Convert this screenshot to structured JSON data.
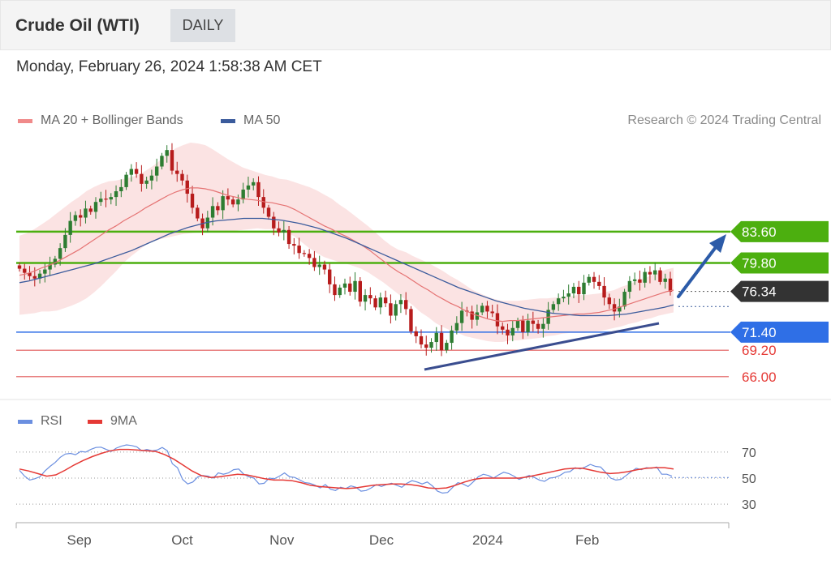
{
  "header": {
    "title": "Crude Oil (WTI)",
    "timeframe": "DAILY"
  },
  "datetime": "Monday, February 26, 2024 1:58:38 AM CET",
  "credit": "Research © 2024 Trading Central",
  "colors": {
    "bull": "#2e7d32",
    "bear": "#b71c1c",
    "ma20": "#e57373",
    "band_fill": "#fbe0e0",
    "ma50": "#3b5b9c",
    "resistance": "#4caf0f",
    "support": "#2f6fe6",
    "weak_support": "#e88080",
    "rsi": "#6b8fe0",
    "rsi_ma": "#e53935",
    "current": "#333333",
    "arrow": "#2c5ba8"
  },
  "chart_data": [
    {
      "type": "candlestick",
      "series": [
        {
          "name": "MA 20 + Bollinger Bands"
        },
        {
          "name": "MA 50"
        }
      ],
      "legend_position": "top-left",
      "x_axis": {
        "tick_labels": [
          "Sep",
          "Oct",
          "Nov",
          "Dec",
          "2024",
          "Feb"
        ],
        "tick_dates": [
          "2023-09-01",
          "2023-10-02",
          "2023-11-01",
          "2023-12-01",
          "2024-01-02",
          "2024-02-01"
        ],
        "range": [
          "2023-08-14",
          "2024-02-26"
        ]
      },
      "y_axis": {
        "range": [
          64.5,
          94.5
        ]
      },
      "levels": [
        {
          "value": 83.6,
          "label": "83.60",
          "kind": "resistance"
        },
        {
          "value": 79.8,
          "label": "79.80",
          "kind": "resistance"
        },
        {
          "value": 76.34,
          "label": "76.34",
          "kind": "current"
        },
        {
          "value": 71.4,
          "label": "71.40",
          "kind": "support"
        },
        {
          "value": 69.2,
          "label": "69.20",
          "kind": "weak_support"
        },
        {
          "value": 66.0,
          "label": "66.00",
          "kind": "weak_support"
        }
      ],
      "closes": [
        79.1,
        78.6,
        78.2,
        77.9,
        78.5,
        79.0,
        79.6,
        80.3,
        81.6,
        83.2,
        84.9,
        85.6,
        85.3,
        86.4,
        86.0,
        87.2,
        87.6,
        87.5,
        87.8,
        88.5,
        89.0,
        90.5,
        91.2,
        90.6,
        89.4,
        89.8,
        90.4,
        91.5,
        92.8,
        93.5,
        91.0,
        90.6,
        89.8,
        88.2,
        86.5,
        85.2,
        84.0,
        85.3,
        86.7,
        86.2,
        87.9,
        87.5,
        86.9,
        87.5,
        88.7,
        89.2,
        89.6,
        87.8,
        86.5,
        85.4,
        84.0,
        83.5,
        83.8,
        82.1,
        81.9,
        81.0,
        80.9,
        80.4,
        79.3,
        79.6,
        79.0,
        77.2,
        75.9,
        76.8,
        77.3,
        76.3,
        77.6,
        75.1,
        75.9,
        75.5,
        74.4,
        75.6,
        74.9,
        73.4,
        74.8,
        75.3,
        74.2,
        71.5,
        70.9,
        69.9,
        69.5,
        70.2,
        71.3,
        69.2,
        70.1,
        71.6,
        72.5,
        74.0,
        73.9,
        72.9,
        73.8,
        74.6,
        73.9,
        73.7,
        72.1,
        71.7,
        71.0,
        71.9,
        72.8,
        71.4,
        72.8,
        72.4,
        71.8,
        72.4,
        74.1,
        74.8,
        75.5,
        75.7,
        76.1,
        76.9,
        76.0,
        77.4,
        78.1,
        77.5,
        77.0,
        75.6,
        74.8,
        73.9,
        74.5,
        76.3,
        77.6,
        77.8,
        77.4,
        78.7,
        78.4,
        78.9,
        77.5,
        77.9,
        76.3
      ],
      "ma20": [
        78.3,
        78.5,
        78.8,
        79.2,
        79.5,
        79.9,
        80.4,
        80.9,
        81.4,
        82.0,
        82.6,
        83.2,
        83.8,
        84.3,
        84.9,
        85.4,
        85.9,
        86.5,
        87.0,
        87.5,
        88.0,
        88.4,
        88.7,
        88.9,
        88.9,
        88.8,
        88.6,
        88.3,
        88.0,
        87.8,
        87.6,
        87.5,
        87.4,
        87.2,
        87.1,
        86.9,
        86.7,
        86.3,
        85.8,
        85.3,
        84.8,
        84.3,
        83.9,
        83.4,
        83.0,
        82.5,
        82.0,
        81.4,
        80.7,
        80.0,
        79.3,
        78.7,
        78.2,
        77.6,
        77.0,
        76.5,
        75.9,
        75.4,
        74.9,
        74.5,
        74.0,
        73.6,
        73.3,
        73.0,
        72.8,
        72.7,
        72.8,
        72.8,
        72.9,
        73.0,
        73.1,
        73.2,
        73.3,
        73.4,
        73.5,
        73.6,
        73.6,
        73.7,
        73.8,
        74.0,
        74.2,
        74.5,
        74.8,
        75.1,
        75.4,
        75.7,
        76.0,
        76.3,
        76.5
      ],
      "ma50": [
        77.4,
        77.6,
        77.9,
        78.2,
        78.5,
        78.8,
        79.1,
        79.4,
        79.7,
        80.1,
        80.5,
        80.9,
        81.3,
        81.8,
        82.3,
        82.8,
        83.3,
        83.7,
        84.1,
        84.4,
        84.7,
        84.9,
        85.0,
        85.1,
        85.2,
        85.2,
        85.2,
        85.1,
        85.0,
        84.8,
        84.6,
        84.3,
        84.0,
        83.6,
        83.2,
        82.8,
        82.3,
        81.8,
        81.3,
        80.8,
        80.3,
        79.8,
        79.3,
        78.8,
        78.3,
        77.8,
        77.3,
        76.8,
        76.4,
        76.0,
        75.6,
        75.2,
        74.9,
        74.6,
        74.3,
        74.1,
        73.9,
        73.7,
        73.6,
        73.5,
        73.4,
        73.4,
        73.4,
        73.4,
        73.5,
        73.6,
        73.8,
        74.0,
        74.2,
        74.4,
        74.7
      ],
      "bollinger_half_width": [
        4.8,
        4.9,
        5.1,
        5.3,
        5.6,
        5.9,
        6.1,
        6.3,
        6.4,
        6.5,
        6.4,
        6.2,
        5.9,
        5.5,
        5.1,
        4.8,
        4.6,
        4.5,
        4.6,
        4.8,
        5.1,
        5.3,
        5.4,
        5.5,
        5.4,
        5.3,
        5.0,
        4.7,
        4.4,
        4.1,
        3.8,
        3.6,
        3.4,
        3.3,
        3.2,
        3.1,
        3.2,
        3.3,
        3.5,
        3.7,
        3.8,
        3.8,
        3.7,
        3.5,
        3.3,
        3.1,
        2.9,
        2.8,
        2.7,
        2.6,
        2.6,
        2.7,
        2.9,
        3.0,
        3.2,
        3.3,
        3.4,
        3.4,
        3.3,
        3.2,
        3.1,
        2.9,
        2.8,
        2.7,
        2.6,
        2.5,
        2.4,
        2.4,
        2.4,
        2.4,
        2.4,
        2.3,
        2.3,
        2.2,
        2.2,
        2.3,
        2.3,
        2.3,
        2.3,
        2.3,
        2.3,
        2.4,
        2.4,
        2.5,
        2.5,
        2.6,
        2.6,
        2.7,
        2.7
      ]
    },
    {
      "type": "line",
      "series": [
        {
          "name": "RSI"
        },
        {
          "name": "9MA"
        }
      ],
      "legend_position": "top-left",
      "y_axis": {
        "tick_labels": [
          "70",
          "50",
          "30"
        ],
        "ticks": [
          70,
          50,
          30
        ],
        "range": [
          22,
          78
        ]
      },
      "reference_level": 50.5,
      "rsi": [
        56.0,
        51.5,
        48.5,
        49.5,
        51.0,
        55.5,
        59.0,
        62.0,
        66.0,
        68.5,
        69.0,
        68.0,
        70.5,
        70.0,
        72.0,
        73.5,
        73.8,
        72.0,
        70.5,
        73.0,
        74.5,
        75.5,
        75.0,
        74.0,
        71.0,
        72.0,
        71.0,
        71.5,
        73.5,
        71.0,
        61.0,
        58.0,
        49.0,
        45.5,
        47.0,
        51.0,
        52.0,
        51.5,
        50.0,
        54.0,
        53.0,
        54.0,
        56.5,
        57.0,
        53.0,
        51.0,
        50.0,
        45.5,
        46.0,
        50.0,
        49.5,
        51.5,
        54.0,
        51.0,
        50.5,
        48.5,
        46.5,
        46.0,
        44.5,
        42.5,
        45.0,
        41.5,
        40.5,
        43.0,
        42.0,
        44.0,
        43.0,
        40.0,
        40.5,
        42.5,
        45.0,
        43.5,
        45.0,
        46.0,
        44.5,
        43.0,
        46.0,
        48.0,
        47.0,
        45.5,
        47.0,
        44.0,
        40.0,
        38.5,
        39.0,
        43.0,
        46.5,
        45.5,
        43.5,
        47.0,
        51.0,
        53.0,
        52.0,
        50.0,
        52.5,
        54.5,
        53.5,
        51.5,
        49.0,
        50.5,
        52.0,
        50.5,
        48.5,
        47.5,
        50.0,
        50.5,
        52.0,
        54.5,
        55.0,
        58.0,
        57.0,
        58.5,
        60.5,
        59.0,
        58.5,
        54.5,
        50.0,
        48.5,
        49.0,
        52.0,
        55.0,
        57.5,
        56.5,
        58.0,
        57.5,
        58.5,
        53.0,
        53.0,
        51.5
      ],
      "ma9": [
        57.0,
        55.5,
        53.5,
        51.5,
        52.5,
        56.0,
        60.0,
        63.5,
        66.5,
        69.0,
        71.0,
        72.0,
        72.0,
        71.5,
        71.0,
        70.5,
        68.0,
        64.5,
        60.0,
        55.5,
        52.0,
        50.5,
        51.0,
        52.0,
        53.0,
        52.5,
        51.0,
        49.5,
        48.5,
        48.5,
        48.0,
        46.5,
        44.5,
        43.5,
        43.0,
        42.5,
        42.0,
        42.5,
        43.5,
        44.5,
        45.0,
        45.5,
        45.5,
        45.0,
        44.0,
        42.5,
        42.0,
        42.5,
        44.5,
        47.0,
        49.0,
        50.0,
        50.0,
        50.0,
        50.0,
        50.0,
        51.0,
        52.5,
        54.0,
        55.5,
        57.0,
        57.5,
        57.5,
        56.0,
        54.5,
        53.5,
        54.0,
        55.0,
        56.5,
        57.5,
        58.0,
        58.0,
        57.0
      ]
    }
  ]
}
